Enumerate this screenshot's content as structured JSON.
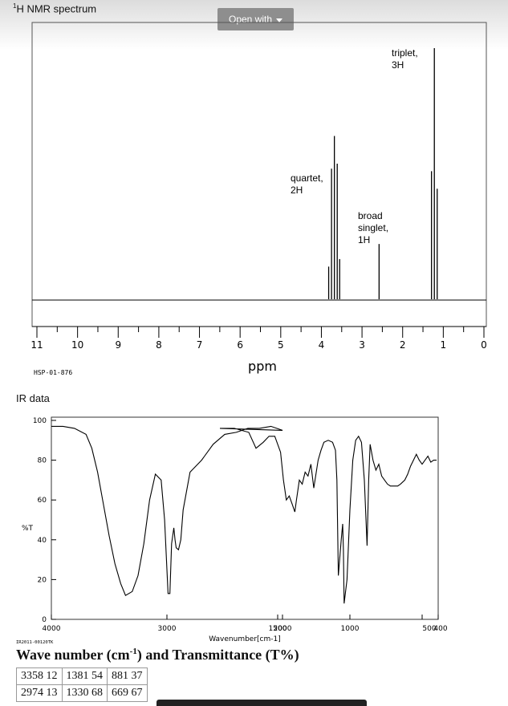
{
  "nmr_title": "H NMR spectrum",
  "nmr_title_sup": "1",
  "open_button": {
    "label": "Open with",
    "icon": "chevron-down-icon"
  },
  "ir_title": "IR data",
  "table_title": {
    "pre": "Wave number (cm",
    "sup": "-1",
    "post": ") and Transmittance (T%)"
  },
  "colors": {
    "line": "#000000",
    "button": "#8e8e8e"
  },
  "chart_data": [
    {
      "type": "line",
      "title": "H NMR spectrum",
      "xlabel": "ppm",
      "code": "HSP-01-876",
      "xlim": [
        11,
        0
      ],
      "x_ticks": [
        "11",
        "10",
        "9",
        "8",
        "7",
        "6",
        "5",
        "4",
        "3",
        "2",
        "1",
        "0"
      ],
      "peaks": [
        {
          "ppm": 3.82,
          "height": 0.13
        },
        {
          "ppm": 3.75,
          "height": 0.52
        },
        {
          "ppm": 3.68,
          "height": 0.65
        },
        {
          "ppm": 3.61,
          "height": 0.54
        },
        {
          "ppm": 3.55,
          "height": 0.16
        },
        {
          "ppm": 2.58,
          "height": 0.22
        },
        {
          "ppm": 1.29,
          "height": 0.51
        },
        {
          "ppm": 1.22,
          "height": 1.0
        },
        {
          "ppm": 1.15,
          "height": 0.44
        }
      ],
      "annotations": [
        {
          "text": [
            "triplet,",
            "3H"
          ],
          "ppm": 1.22
        },
        {
          "text": [
            "quartet,",
            "2H"
          ],
          "ppm": 3.68
        },
        {
          "text": [
            "broad",
            "singlet,",
            "1H"
          ],
          "ppm": 2.58
        }
      ]
    },
    {
      "type": "line",
      "title": "IR data",
      "xlabel": "Wavenumber[cm-1]",
      "ylabel": "%T",
      "code": "IR2011-00120TK",
      "xlim": [
        4000,
        400
      ],
      "ylim": [
        0,
        100
      ],
      "x_ticks": [
        "4000",
        "3000",
        "2000",
        "1500",
        "1000",
        "500",
        "400"
      ],
      "y_ticks": [
        "0",
        "20",
        "40",
        "60",
        "80",
        "100"
      ],
      "series": [
        {
          "x": [
            4000,
            3900,
            3800,
            3700,
            3650,
            3600,
            3550,
            3500,
            3450,
            3400,
            3358,
            3300,
            3250,
            3200,
            3150,
            3100,
            3050,
            3020,
            3000,
            2990,
            2974,
            2960,
            2940,
            2930,
            2920,
            2900,
            2880,
            2860,
            2800,
            2700,
            2600,
            2500,
            2400,
            2300,
            2200,
            2100,
            2000,
            1900,
            1800,
            1700,
            1650,
            1600,
            1560,
            1520,
            1480,
            1460,
            1440,
            1420,
            1400,
            1381,
            1370,
            1350,
            1330,
            1310,
            1290,
            1270,
            1250,
            1220,
            1200,
            1180,
            1150,
            1120,
            1100,
            1090,
            1080,
            1060,
            1050,
            1045,
            1040,
            1020,
            1000,
            980,
            960,
            940,
            920,
            900,
            881,
            870,
            860,
            840,
            820,
            800,
            780,
            760,
            740,
            720,
            700,
            680,
            669,
            650,
            620,
            600,
            580,
            560,
            540,
            520,
            500,
            480,
            460,
            440,
            420,
            400
          ],
          "y": [
            97,
            97,
            96,
            93,
            86,
            74,
            58,
            42,
            28,
            18,
            12,
            14,
            22,
            38,
            60,
            73,
            70,
            50,
            25,
            13,
            13,
            38,
            46,
            40,
            36,
            35,
            40,
            55,
            74,
            80,
            88,
            93,
            94,
            96,
            96,
            97,
            95,
            96,
            96,
            94,
            86,
            89,
            92,
            92,
            84,
            70,
            60,
            62,
            58,
            54,
            60,
            70,
            68,
            74,
            72,
            78,
            66,
            80,
            85,
            89,
            90,
            89,
            85,
            70,
            22,
            40,
            48,
            35,
            8,
            20,
            55,
            80,
            90,
            92,
            89,
            70,
            37,
            70,
            88,
            80,
            75,
            78,
            72,
            70,
            68,
            67,
            67,
            67,
            67,
            68,
            70,
            73,
            77,
            80,
            83,
            80,
            78,
            80,
            82,
            79,
            80,
            80
          ]
        }
      ]
    }
  ]
}
